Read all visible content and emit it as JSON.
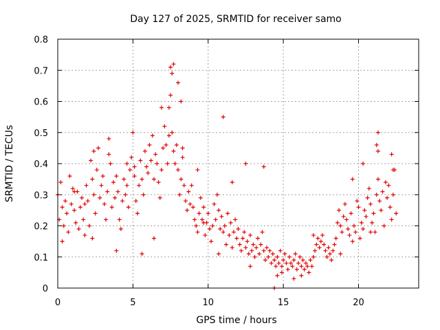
{
  "chart_data": {
    "type": "scatter",
    "title": "Day 127 of 2025, SRMTID for receiver samo",
    "xlabel": "GPS time / hours",
    "ylabel": "SRMTID / TECUs",
    "xlim": [
      0,
      24
    ],
    "ylim": [
      0,
      0.8
    ],
    "xticks": [
      0,
      5,
      10,
      15,
      20
    ],
    "xtick_labels": [
      "0",
      "5",
      "10",
      "15",
      "20"
    ],
    "yticks": [
      0,
      0.1,
      0.2,
      0.3,
      0.4,
      0.5,
      0.6,
      0.7,
      0.8
    ],
    "ytick_labels": [
      "0",
      "0.1",
      "0.2",
      "0.3",
      "0.4",
      "0.5",
      "0.6",
      "0.7",
      "0.8"
    ],
    "grid": true,
    "marker": "plus",
    "color": "#e00000",
    "series": [
      {
        "name": "SRMTID",
        "x": [
          0.0,
          0.1,
          0.2,
          0.3,
          0.4,
          0.5,
          0.6,
          0.7,
          0.8,
          0.9,
          1.0,
          1.1,
          1.2,
          1.3,
          1.4,
          1.5,
          1.6,
          1.7,
          1.8,
          1.9,
          2.0,
          2.1,
          2.2,
          2.3,
          2.4,
          2.5,
          2.6,
          2.7,
          2.8,
          2.9,
          3.0,
          3.1,
          3.2,
          3.3,
          3.4,
          3.5,
          3.6,
          3.7,
          3.8,
          3.9,
          4.0,
          4.1,
          4.2,
          4.3,
          4.4,
          4.5,
          4.6,
          4.7,
          4.8,
          4.9,
          5.0,
          5.1,
          5.2,
          5.3,
          5.4,
          5.5,
          5.6,
          5.7,
          5.8,
          5.9,
          6.0,
          6.1,
          6.2,
          6.3,
          6.4,
          6.5,
          6.6,
          6.7,
          6.8,
          6.9,
          7.0,
          7.1,
          7.2,
          7.3,
          7.4,
          7.5,
          7.6,
          7.7,
          7.8,
          7.9,
          8.0,
          8.1,
          8.2,
          8.3,
          8.4,
          8.5,
          8.6,
          8.7,
          8.8,
          8.9,
          9.0,
          9.1,
          9.2,
          9.3,
          9.4,
          9.5,
          9.6,
          9.7,
          9.8,
          9.9,
          10.0,
          10.1,
          10.2,
          10.3,
          10.4,
          10.5,
          10.6,
          10.7,
          10.8,
          10.9,
          11.0,
          11.1,
          11.2,
          11.3,
          11.4,
          11.5,
          11.6,
          11.7,
          11.8,
          11.9,
          12.0,
          12.1,
          12.2,
          12.3,
          12.4,
          12.5,
          12.6,
          12.7,
          12.8,
          12.9,
          13.0,
          13.1,
          13.2,
          13.3,
          13.4,
          13.5,
          13.6,
          13.7,
          13.8,
          13.9,
          14.0,
          14.1,
          14.2,
          14.3,
          14.4,
          14.5,
          14.6,
          14.7,
          14.8,
          14.9,
          15.0,
          15.1,
          15.2,
          15.3,
          15.4,
          15.5,
          15.6,
          15.7,
          15.8,
          15.9,
          16.0,
          16.1,
          16.2,
          16.3,
          16.4,
          16.5,
          16.6,
          16.7,
          16.8,
          16.9,
          17.0,
          17.1,
          17.2,
          17.3,
          17.4,
          17.5,
          17.6,
          17.7,
          17.8,
          17.9,
          18.0,
          18.1,
          18.2,
          18.3,
          18.4,
          18.5,
          18.6,
          18.7,
          18.8,
          18.9,
          19.0,
          19.1,
          19.2,
          19.3,
          19.4,
          19.5,
          19.6,
          19.7,
          19.8,
          19.9,
          20.0,
          20.1,
          20.2,
          20.3,
          20.4,
          20.5,
          20.6,
          20.7,
          20.8,
          20.9,
          21.0,
          21.1,
          21.2,
          21.3,
          21.4,
          21.5,
          21.6,
          21.7,
          21.8,
          21.9,
          22.0,
          22.1,
          22.2,
          22.3,
          22.4,
          22.5,
          1.1,
          2.3,
          2.4,
          3.4,
          5.1,
          6.9,
          7.4,
          7.5,
          7.6,
          7.7,
          8.0,
          8.2,
          8.3,
          9.3,
          11.0,
          13.7,
          14.4,
          14.6,
          21.3,
          21.3,
          21.2,
          22.2,
          22.3,
          12.5,
          15.7,
          16.2,
          14.9,
          17.0,
          18.8,
          19.6,
          20.3,
          20.8,
          10.7,
          11.6,
          0.3,
          1.8,
          3.9,
          4.6,
          5.6,
          6.4,
          9.7,
          12.8
        ],
        "y": [
          0.3,
          0.22,
          0.34,
          0.26,
          0.2,
          0.28,
          0.24,
          0.18,
          0.36,
          0.27,
          0.32,
          0.25,
          0.21,
          0.31,
          0.19,
          0.26,
          0.29,
          0.22,
          0.17,
          0.33,
          0.28,
          0.2,
          0.41,
          0.35,
          0.3,
          0.24,
          0.38,
          0.45,
          0.29,
          0.33,
          0.36,
          0.27,
          0.22,
          0.31,
          0.48,
          0.4,
          0.26,
          0.34,
          0.29,
          0.36,
          0.31,
          0.22,
          0.19,
          0.28,
          0.35,
          0.3,
          0.33,
          0.26,
          0.38,
          0.42,
          0.5,
          0.36,
          0.28,
          0.24,
          0.33,
          0.41,
          0.35,
          0.3,
          0.44,
          0.39,
          0.37,
          0.46,
          0.41,
          0.49,
          0.35,
          0.43,
          0.4,
          0.34,
          0.29,
          0.38,
          0.45,
          0.52,
          0.46,
          0.4,
          0.58,
          0.62,
          0.5,
          0.44,
          0.4,
          0.46,
          0.38,
          0.3,
          0.35,
          0.42,
          0.33,
          0.28,
          0.25,
          0.31,
          0.27,
          0.33,
          0.26,
          0.22,
          0.2,
          0.18,
          0.24,
          0.29,
          0.22,
          0.26,
          0.17,
          0.21,
          0.24,
          0.19,
          0.15,
          0.2,
          0.27,
          0.22,
          0.3,
          0.25,
          0.19,
          0.23,
          0.18,
          0.2,
          0.14,
          0.24,
          0.17,
          0.21,
          0.13,
          0.18,
          0.22,
          0.16,
          0.19,
          0.14,
          0.12,
          0.16,
          0.18,
          0.13,
          0.15,
          0.11,
          0.17,
          0.12,
          0.14,
          0.1,
          0.13,
          0.16,
          0.11,
          0.14,
          0.18,
          0.12,
          0.09,
          0.13,
          0.1,
          0.12,
          0.08,
          0.11,
          0.09,
          0.07,
          0.1,
          0.08,
          0.12,
          0.07,
          0.09,
          0.11,
          0.08,
          0.06,
          0.1,
          0.08,
          0.07,
          0.09,
          0.11,
          0.06,
          0.08,
          0.1,
          0.07,
          0.09,
          0.06,
          0.08,
          0.07,
          0.05,
          0.09,
          0.07,
          0.1,
          0.12,
          0.14,
          0.16,
          0.13,
          0.15,
          0.17,
          0.14,
          0.12,
          0.1,
          0.13,
          0.11,
          0.09,
          0.12,
          0.14,
          0.16,
          0.21,
          0.25,
          0.2,
          0.18,
          0.23,
          0.27,
          0.22,
          0.19,
          0.17,
          0.24,
          0.15,
          0.2,
          0.18,
          0.28,
          0.26,
          0.16,
          0.21,
          0.19,
          0.25,
          0.23,
          0.29,
          0.32,
          0.27,
          0.21,
          0.24,
          0.18,
          0.3,
          0.35,
          0.28,
          0.25,
          0.31,
          0.2,
          0.34,
          0.29,
          0.33,
          0.26,
          0.22,
          0.3,
          0.38,
          0.24,
          0.31,
          0.16,
          0.44,
          0.43,
          0.39,
          0.58,
          0.49,
          0.71,
          0.69,
          0.72,
          0.66,
          0.6,
          0.45,
          0.38,
          0.55,
          0.39,
          0.0,
          0.04,
          0.5,
          0.44,
          0.46,
          0.43,
          0.38,
          0.4,
          0.03,
          0.04,
          0.05,
          0.17,
          0.11,
          0.35,
          0.4,
          0.18,
          0.11,
          0.34,
          0.15,
          0.27,
          0.12,
          0.4,
          0.11,
          0.16,
          0.21,
          0.07
        ]
      }
    ]
  }
}
